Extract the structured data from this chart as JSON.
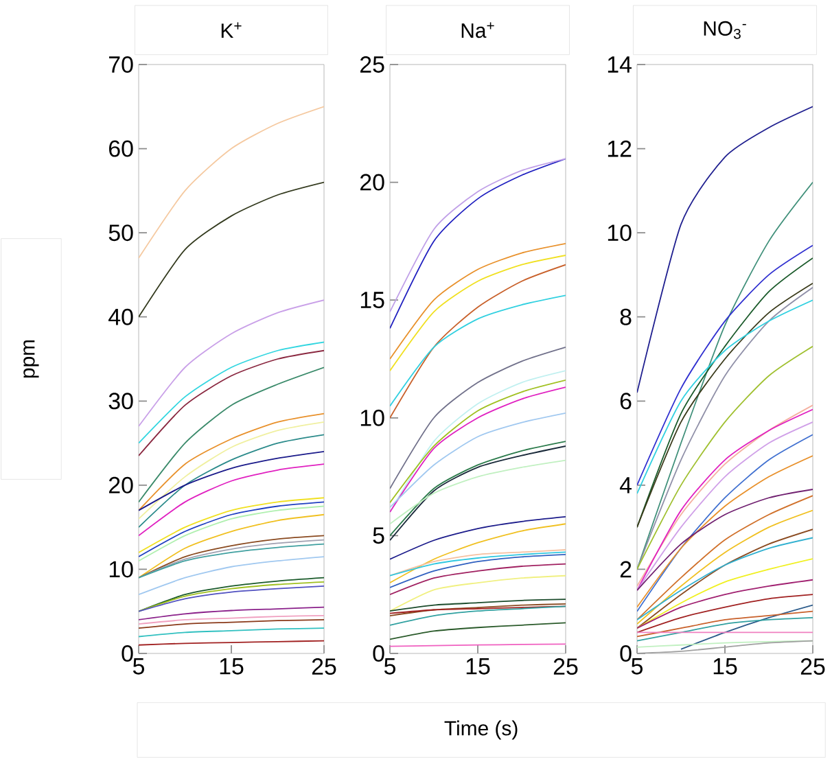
{
  "chart_data": [
    {
      "type": "line",
      "title": "K$^{+}$",
      "ylabel": "ppm",
      "x": [
        5,
        10,
        15,
        20,
        25
      ],
      "xlim": [
        5,
        25
      ],
      "ylim": [
        0,
        70
      ],
      "xticks": [
        5,
        15,
        25
      ],
      "yticks": [
        0,
        10,
        20,
        30,
        40,
        50,
        60,
        70
      ],
      "series": [
        {
          "color": "#f5c9a0",
          "values": [
            47,
            55,
            60,
            63,
            65
          ]
        },
        {
          "color": "#333a1e",
          "values": [
            40,
            48,
            52,
            54.5,
            56
          ]
        },
        {
          "color": "#c9a0e8",
          "values": [
            27,
            34,
            38,
            40.5,
            42
          ]
        },
        {
          "color": "#33d6e0",
          "values": [
            25,
            30.5,
            34,
            36,
            37
          ]
        },
        {
          "color": "#8a2840",
          "values": [
            23.5,
            29.5,
            33,
            35,
            36
          ]
        },
        {
          "color": "#3a8a6a",
          "values": [
            18,
            25,
            29.5,
            32,
            34
          ]
        },
        {
          "color": "#e8902a",
          "values": [
            17,
            22.5,
            25.5,
            27.5,
            28.5
          ]
        },
        {
          "color": "#f0f0a0",
          "values": [
            16,
            21,
            24.5,
            26.5,
            27.5
          ]
        },
        {
          "color": "#2a8a8a",
          "values": [
            15,
            20,
            23,
            25,
            26
          ]
        },
        {
          "color": "#1a1a8a",
          "values": [
            17,
            20,
            22,
            23.2,
            24
          ]
        },
        {
          "color": "#e020c0",
          "values": [
            14,
            18,
            20.5,
            21.8,
            22.5
          ]
        },
        {
          "color": "#f0e020",
          "values": [
            12,
            15,
            17,
            18,
            18.5
          ]
        },
        {
          "color": "#2040c0",
          "values": [
            11.5,
            14.5,
            16.5,
            17.5,
            18
          ]
        },
        {
          "color": "#b0f0b0",
          "values": [
            11,
            14,
            16,
            17,
            17.5
          ]
        },
        {
          "color": "#f0c020",
          "values": [
            9,
            12.5,
            14.5,
            15.8,
            16.5
          ]
        },
        {
          "color": "#8a4a20",
          "values": [
            9,
            11.5,
            12.8,
            13.6,
            14
          ]
        },
        {
          "color": "#a0a0b0",
          "values": [
            9,
            11.2,
            12.4,
            13.1,
            13.5
          ]
        },
        {
          "color": "#40a0a0",
          "values": [
            9,
            11,
            12,
            12.6,
            13
          ]
        },
        {
          "color": "#a0c8f0",
          "values": [
            7,
            9,
            10.3,
            11,
            11.5
          ]
        },
        {
          "color": "#1a5a2a",
          "values": [
            5,
            7,
            8,
            8.6,
            9
          ]
        },
        {
          "color": "#a0c020",
          "values": [
            5,
            6.8,
            7.7,
            8.2,
            8.5
          ]
        },
        {
          "color": "#5050c0",
          "values": [
            5,
            6.5,
            7.3,
            7.7,
            8
          ]
        },
        {
          "color": "#8a208a",
          "values": [
            4,
            4.7,
            5.1,
            5.3,
            5.5
          ]
        },
        {
          "color": "#f0a0c0",
          "values": [
            3.5,
            4,
            4.2,
            4.4,
            4.5
          ]
        },
        {
          "color": "#8a3a1a",
          "values": [
            3,
            3.5,
            3.7,
            3.9,
            4
          ]
        },
        {
          "color": "#30c0c0",
          "values": [
            2,
            2.5,
            2.7,
            2.9,
            3
          ]
        },
        {
          "color": "#a02020",
          "values": [
            1,
            1.2,
            1.3,
            1.4,
            1.5
          ]
        }
      ]
    },
    {
      "type": "line",
      "title": "Na$^{+}$",
      "xlabel": "Time (s)",
      "x": [
        5,
        10,
        15,
        20,
        25
      ],
      "xlim": [
        5,
        25
      ],
      "ylim": [
        0,
        25
      ],
      "xticks": [
        5,
        15,
        25
      ],
      "yticks": [
        0,
        5,
        10,
        15,
        20,
        25
      ],
      "series": [
        {
          "color": "#2020c0",
          "values": [
            13.8,
            17.5,
            19.3,
            20.3,
            21
          ]
        },
        {
          "color": "#c0a0e8",
          "values": [
            14.5,
            18,
            19.6,
            20.5,
            21
          ]
        },
        {
          "color": "#e8902a",
          "values": [
            12.5,
            15,
            16.3,
            17,
            17.4
          ]
        },
        {
          "color": "#f0e020",
          "values": [
            12,
            14.5,
            15.8,
            16.5,
            16.9
          ]
        },
        {
          "color": "#c8602a",
          "values": [
            10,
            13,
            14.7,
            15.8,
            16.5
          ]
        },
        {
          "color": "#30d0e0",
          "values": [
            10.5,
            13,
            14.2,
            14.8,
            15.2
          ]
        },
        {
          "color": "#70708a",
          "values": [
            7,
            10,
            11.5,
            12.4,
            13
          ]
        },
        {
          "color": "#c0f0f0",
          "values": [
            6,
            9,
            10.6,
            11.5,
            12
          ]
        },
        {
          "color": "#a0c020",
          "values": [
            6.4,
            8.8,
            10.3,
            11.1,
            11.6
          ]
        },
        {
          "color": "#e020c0",
          "values": [
            6,
            8.7,
            10,
            10.8,
            11.3
          ]
        },
        {
          "color": "#a0c8f0",
          "values": [
            6.2,
            8,
            9.2,
            9.8,
            10.2
          ]
        },
        {
          "color": "#2a7a4a",
          "values": [
            5,
            7,
            8,
            8.6,
            9
          ]
        },
        {
          "color": "#1a2a3a",
          "values": [
            4.8,
            6.9,
            7.9,
            8.4,
            8.8
          ]
        },
        {
          "color": "#c0f0c0",
          "values": [
            5.5,
            6.8,
            7.5,
            7.9,
            8.2
          ]
        },
        {
          "color": "#1a1a8a",
          "values": [
            4,
            4.8,
            5.3,
            5.6,
            5.8
          ]
        },
        {
          "color": "#f0c020",
          "values": [
            3,
            4,
            4.7,
            5.2,
            5.5
          ]
        },
        {
          "color": "#f5c0a0",
          "values": [
            3.3,
            3.9,
            4.2,
            4.3,
            4.4
          ]
        },
        {
          "color": "#30c8e0",
          "values": [
            3.3,
            3.8,
            4.05,
            4.2,
            4.3
          ]
        },
        {
          "color": "#3060c0",
          "values": [
            2.8,
            3.5,
            3.9,
            4.1,
            4.2
          ]
        },
        {
          "color": "#a02060",
          "values": [
            2.5,
            3.2,
            3.5,
            3.7,
            3.8
          ]
        },
        {
          "color": "#f0f080",
          "values": [
            1.8,
            2.7,
            3,
            3.2,
            3.3
          ]
        },
        {
          "color": "#1a4a2a",
          "values": [
            1.8,
            2.05,
            2.15,
            2.25,
            2.3
          ]
        },
        {
          "color": "#8a4a20",
          "values": [
            1.6,
            1.85,
            1.95,
            2.05,
            2.1
          ]
        },
        {
          "color": "#a02020",
          "values": [
            1.7,
            1.85,
            1.9,
            1.95,
            2
          ]
        },
        {
          "color": "#30a0a0",
          "values": [
            1.2,
            1.6,
            1.8,
            1.9,
            2
          ]
        },
        {
          "color": "#2a5a2a",
          "values": [
            0.6,
            0.95,
            1.1,
            1.2,
            1.3
          ]
        },
        {
          "color": "#f060c0",
          "values": [
            0.3,
            0.33,
            0.36,
            0.38,
            0.4
          ]
        }
      ]
    },
    {
      "type": "line",
      "title": "NO$_{3}$$^{-}$",
      "x": [
        5,
        10,
        15,
        20,
        25
      ],
      "xlim": [
        5,
        25
      ],
      "ylim": [
        0,
        14
      ],
      "xticks": [
        5,
        15,
        25
      ],
      "yticks": [
        0,
        2,
        4,
        6,
        8,
        10,
        12,
        14
      ],
      "series": [
        {
          "color": "#202090",
          "values": [
            6.2,
            10.2,
            11.8,
            12.5,
            13
          ]
        },
        {
          "color": "#40907a",
          "values": [
            2,
            5,
            7.8,
            9.8,
            11.2
          ]
        },
        {
          "color": "#3030d0",
          "values": [
            4,
            6.3,
            7.9,
            9,
            9.7
          ]
        },
        {
          "color": "#1a5a2a",
          "values": [
            3,
            5.7,
            7.3,
            8.6,
            9.4
          ]
        },
        {
          "color": "#3a3a1a",
          "values": [
            3,
            5.5,
            7,
            8.1,
            8.8
          ]
        },
        {
          "color": "#9090a8",
          "values": [
            2,
            4.6,
            6.6,
            7.9,
            8.7
          ]
        },
        {
          "color": "#30d0e0",
          "values": [
            3.8,
            6,
            7.2,
            7.9,
            8.4
          ]
        },
        {
          "color": "#a0c030",
          "values": [
            2,
            4,
            5.5,
            6.6,
            7.3
          ]
        },
        {
          "color": "#f5b0a0",
          "values": [
            1.6,
            3.3,
            4.5,
            5.3,
            5.9
          ]
        },
        {
          "color": "#e020c0",
          "values": [
            1.5,
            3.4,
            4.6,
            5.3,
            5.8
          ]
        },
        {
          "color": "#d0a0e8",
          "values": [
            1.5,
            3,
            4.2,
            5,
            5.5
          ]
        },
        {
          "color": "#4070d0",
          "values": [
            1,
            2.5,
            3.7,
            4.6,
            5.2
          ]
        },
        {
          "color": "#e8902a",
          "values": [
            1.1,
            2.5,
            3.5,
            4.2,
            4.7
          ]
        },
        {
          "color": "#702070",
          "values": [
            1.5,
            2.6,
            3.3,
            3.7,
            3.9
          ]
        },
        {
          "color": "#d0702a",
          "values": [
            0.8,
            1.8,
            2.7,
            3.3,
            3.75
          ]
        },
        {
          "color": "#f0c020",
          "values": [
            0.7,
            1.6,
            2.4,
            3,
            3.4
          ]
        },
        {
          "color": "#8a4a20",
          "values": [
            0.6,
            1.4,
            2.1,
            2.6,
            2.95
          ]
        },
        {
          "color": "#30b0d0",
          "values": [
            0.8,
            1.5,
            2.1,
            2.5,
            2.75
          ]
        },
        {
          "color": "#f0f020",
          "values": [
            0.6,
            1.2,
            1.7,
            2,
            2.25
          ]
        },
        {
          "color": "#a02070",
          "values": [
            0.6,
            1.1,
            1.4,
            1.6,
            1.75
          ]
        },
        {
          "color": "#a02020",
          "values": [
            0.5,
            0.85,
            1.1,
            1.3,
            1.4
          ]
        },
        {
          "color": "#2a5a8a",
          "values": [
            null,
            0.1,
            0.5,
            0.85,
            1.15
          ]
        },
        {
          "color": "#c8602a",
          "values": [
            0.4,
            0.6,
            0.8,
            0.9,
            1
          ]
        },
        {
          "color": "#30a0a0",
          "values": [
            0.3,
            0.5,
            0.7,
            0.8,
            0.85
          ]
        },
        {
          "color": "#f080c0",
          "values": [
            0.5,
            0.5,
            0.5,
            0.5,
            0.5
          ]
        },
        {
          "color": "#c0f0c0",
          "values": [
            0.15,
            0.2,
            0.25,
            0.28,
            0.3
          ]
        },
        {
          "color": "#a0a0a0",
          "values": [
            0,
            0.05,
            0.15,
            0.25,
            0.3
          ]
        }
      ]
    }
  ]
}
